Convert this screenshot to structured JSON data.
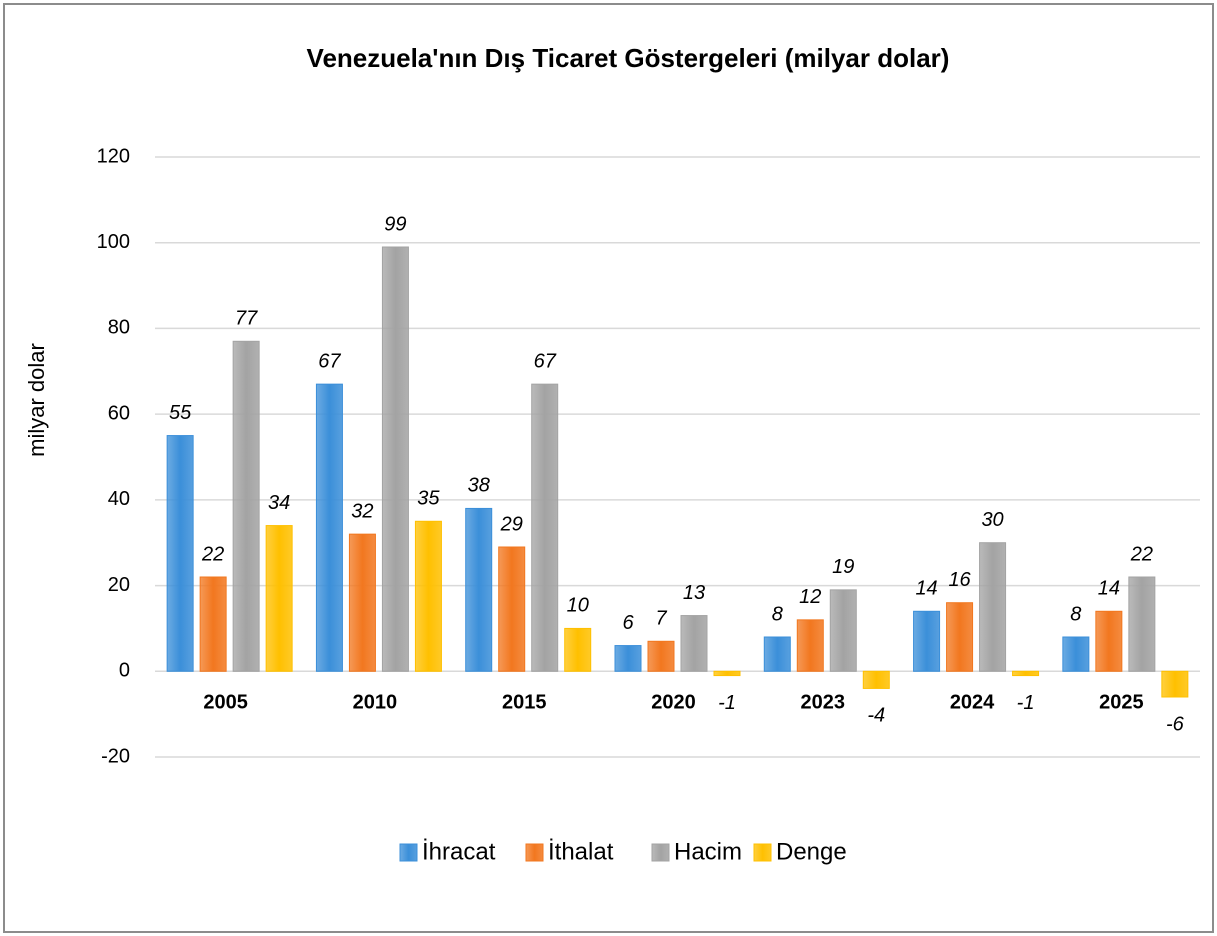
{
  "chart_data": {
    "type": "bar",
    "title": "Venezuela'nın Dış Ticaret Göstergeleri (milyar dolar)",
    "ylabel": "milyar dolar",
    "categories": [
      "2005",
      "2010",
      "2015",
      "2020",
      "2023",
      "2024",
      "2025"
    ],
    "series": [
      {
        "name": "İhracat",
        "color": "#3b8fd9",
        "values": [
          55,
          67,
          38,
          6,
          8,
          14,
          8
        ]
      },
      {
        "name": "İthalat",
        "color": "#f2771f",
        "values": [
          22,
          32,
          29,
          7,
          12,
          16,
          14
        ]
      },
      {
        "name": "Hacim",
        "color": "#a3a3a3",
        "values": [
          77,
          99,
          67,
          13,
          19,
          30,
          22
        ]
      },
      {
        "name": "Denge",
        "color": "#ffc000",
        "values": [
          34,
          35,
          10,
          -1,
          -4,
          -1,
          -6
        ]
      }
    ],
    "ylim": [
      -20,
      120
    ],
    "yticks": [
      -20,
      0,
      20,
      40,
      60,
      80,
      100,
      120
    ],
    "grid": true,
    "legend": "bottom"
  }
}
